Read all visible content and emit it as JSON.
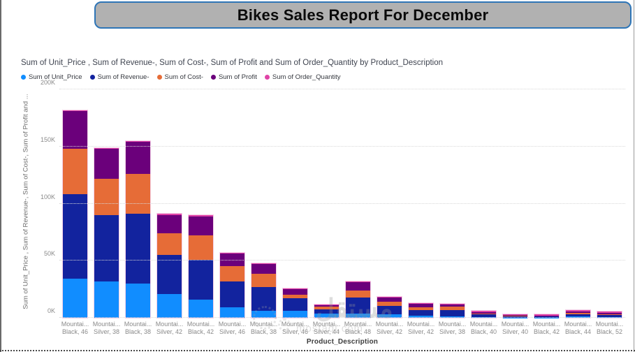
{
  "banner": {
    "title": "Bikes Sales Report For December",
    "background": "#b1b1b1",
    "border_color": "#2e75b6"
  },
  "chart": {
    "title": "Sum of Unit_Price , Sum of Revenue-, Sum of Cost-, Sum of Profit and Sum of Order_Quantity by Product_Description",
    "y_axis_title": "Sum of Unit_Price , Sum of Revenue-, Sum of Cost-, Sum of Profit and ...",
    "x_axis_title": "Product_Description",
    "y_ticks": [
      "0K",
      "50K",
      "100K",
      "150K",
      "200K"
    ]
  },
  "legend": {
    "items": [
      {
        "label": "Sum of  Unit_Price",
        "color": "#118DFF"
      },
      {
        "label": "Sum of Revenue-",
        "color": "#12239E"
      },
      {
        "label": "Sum of Cost-",
        "color": "#E66C37"
      },
      {
        "label": "Sum of  Profit",
        "color": "#6B007B"
      },
      {
        "label": "Sum of Order_Quantity",
        "color": "#E044A7"
      }
    ]
  },
  "chart_data": {
    "type": "bar",
    "stacked": true,
    "title": "Sum of Unit_Price , Sum of Revenue-, Sum of Cost-, Sum of Profit and Sum of Order_Quantity by Product_Description",
    "xlabel": "Product_Description",
    "ylabel": "Sum of Unit_Price , Sum of Revenue-, Sum of Cost-, Sum of Profit and ...",
    "ylim": [
      0,
      200
    ],
    "y_unit": "K",
    "grid": true,
    "legend_position": "top",
    "categories": [
      [
        "Mountai...",
        "Black, 46"
      ],
      [
        "Mountai...",
        "Silver, 38"
      ],
      [
        "Mountai...",
        "Black, 38"
      ],
      [
        "Mountai...",
        "Silver, 42"
      ],
      [
        "Mountai...",
        "Black, 42"
      ],
      [
        "Mountai...",
        "Silver, 46"
      ],
      [
        "Mountai...",
        "Black, 38"
      ],
      [
        "Mountai...",
        "Silver, 46"
      ],
      [
        "Mountai...",
        "Silver, 44"
      ],
      [
        "Mountai...",
        "Black, 48"
      ],
      [
        "Mountai...",
        "Silver, 42"
      ],
      [
        "Mountai...",
        "Silver, 42"
      ],
      [
        "Mountai...",
        "Silver, 38"
      ],
      [
        "Mountai...",
        "Black, 40"
      ],
      [
        "Mountai...",
        "Silver, 40"
      ],
      [
        "Mountai...",
        "Black, 42"
      ],
      [
        "Mountai...",
        "Black, 44"
      ],
      [
        "Mountai...",
        "Black, 52"
      ]
    ],
    "series": [
      {
        "name": "Sum of Unit_Price",
        "color": "#118DFF",
        "values_k": [
          34,
          32,
          30,
          21,
          16,
          9,
          6,
          6,
          3.5,
          3.5,
          3,
          2,
          1.5,
          0.5,
          0.3,
          0.3,
          1,
          0.5
        ]
      },
      {
        "name": "Sum of Revenue-",
        "color": "#12239E",
        "values_k": [
          74,
          58,
          61,
          34,
          35,
          23,
          21,
          11,
          4,
          14,
          7.5,
          5,
          5,
          2.5,
          1,
          0.8,
          2.2,
          1.8
        ]
      },
      {
        "name": "Sum of Cost-",
        "color": "#E66C37",
        "values_k": [
          40,
          32,
          35,
          19,
          21,
          13,
          11.5,
          3.5,
          2.5,
          6.5,
          3.5,
          2,
          3,
          1,
          0.4,
          0.4,
          1.2,
          1
        ]
      },
      {
        "name": "Sum of Profit",
        "color": "#6B007B",
        "values_k": [
          33,
          26,
          28,
          16,
          17,
          11,
          8.5,
          4.5,
          1,
          7,
          3.5,
          3,
          2,
          1.2,
          0.6,
          0.5,
          1.2,
          1.1
        ]
      },
      {
        "name": "Sum of Order_Quantity",
        "color": "#E044A7",
        "values_k": [
          0,
          0,
          0,
          0,
          0,
          0,
          0,
          0,
          0,
          0,
          0,
          0,
          0,
          0,
          0,
          0,
          0,
          0
        ]
      }
    ],
    "bar_totals_k": [
      181,
      148,
      154,
      90,
      89,
      56,
      47,
      25,
      11,
      31,
      17.5,
      12,
      11.5,
      5.2,
      2.3,
      2,
      5.6,
      4.4
    ]
  },
  "watermark": {
    "arabic": "مستقل",
    "domain": "mostaql.com"
  }
}
